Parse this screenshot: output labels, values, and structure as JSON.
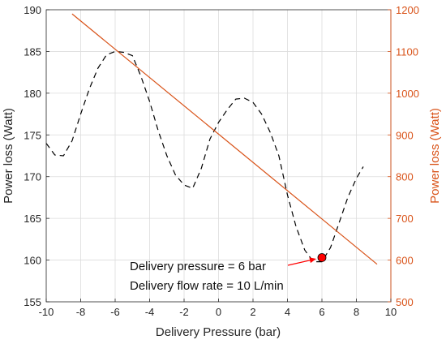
{
  "chart_data": {
    "type": "line",
    "title": "",
    "xlabel": "Delivery Pressure (bar)",
    "ylabel_left": "Power loss (Watt)",
    "ylabel_right": "Power loss (Watt)",
    "xlim": [
      -10,
      10
    ],
    "ylim_left": [
      155,
      190
    ],
    "ylim_right": [
      500,
      1200
    ],
    "x_ticks": [
      -10,
      -8,
      -6,
      -4,
      -2,
      0,
      2,
      4,
      6,
      8,
      10
    ],
    "y_left_ticks": [
      155,
      160,
      165,
      170,
      175,
      180,
      185,
      190
    ],
    "y_right_ticks": [
      500,
      600,
      700,
      800,
      900,
      1000,
      1100,
      1200
    ],
    "grid": true,
    "colors": {
      "dashed_series": "#000000",
      "right_axis": "#d95319",
      "marker": "#ff0000"
    },
    "series": [
      {
        "axis": "left",
        "style": "dashed",
        "x": [
          -10,
          -9.5,
          -9,
          -8.5,
          -8,
          -7.5,
          -7,
          -6.5,
          -6,
          -5.5,
          -5,
          -4.5,
          -4,
          -3.5,
          -3,
          -2.5,
          -2,
          -1.5,
          -1,
          -0.5,
          0,
          0.5,
          1,
          1.5,
          2,
          2.5,
          3,
          3.5,
          4,
          4.5,
          5,
          5.5,
          6,
          6.5,
          7,
          7.5,
          8,
          8.4
        ],
        "y": [
          174.0,
          172.6,
          172.5,
          174.3,
          177.5,
          180.5,
          183.0,
          184.6,
          185.0,
          184.9,
          184.5,
          182.0,
          179.0,
          175.5,
          172.5,
          170.2,
          169.0,
          168.6,
          171.0,
          174.5,
          176.5,
          178.0,
          179.3,
          179.4,
          178.9,
          177.5,
          175.3,
          172.5,
          167.8,
          164.0,
          161.2,
          159.8,
          159.8,
          161.5,
          164.5,
          167.5,
          169.8,
          171.2
        ]
      },
      {
        "axis": "right",
        "style": "solid",
        "x": [
          -8.5,
          9.2
        ],
        "y": [
          1190,
          590
        ]
      }
    ],
    "highlight_point": {
      "x": 6,
      "y": 160.3
    },
    "annotations": [
      "Delivery pressure = 6 bar",
      "Delivery flow rate = 10 L/min"
    ]
  }
}
